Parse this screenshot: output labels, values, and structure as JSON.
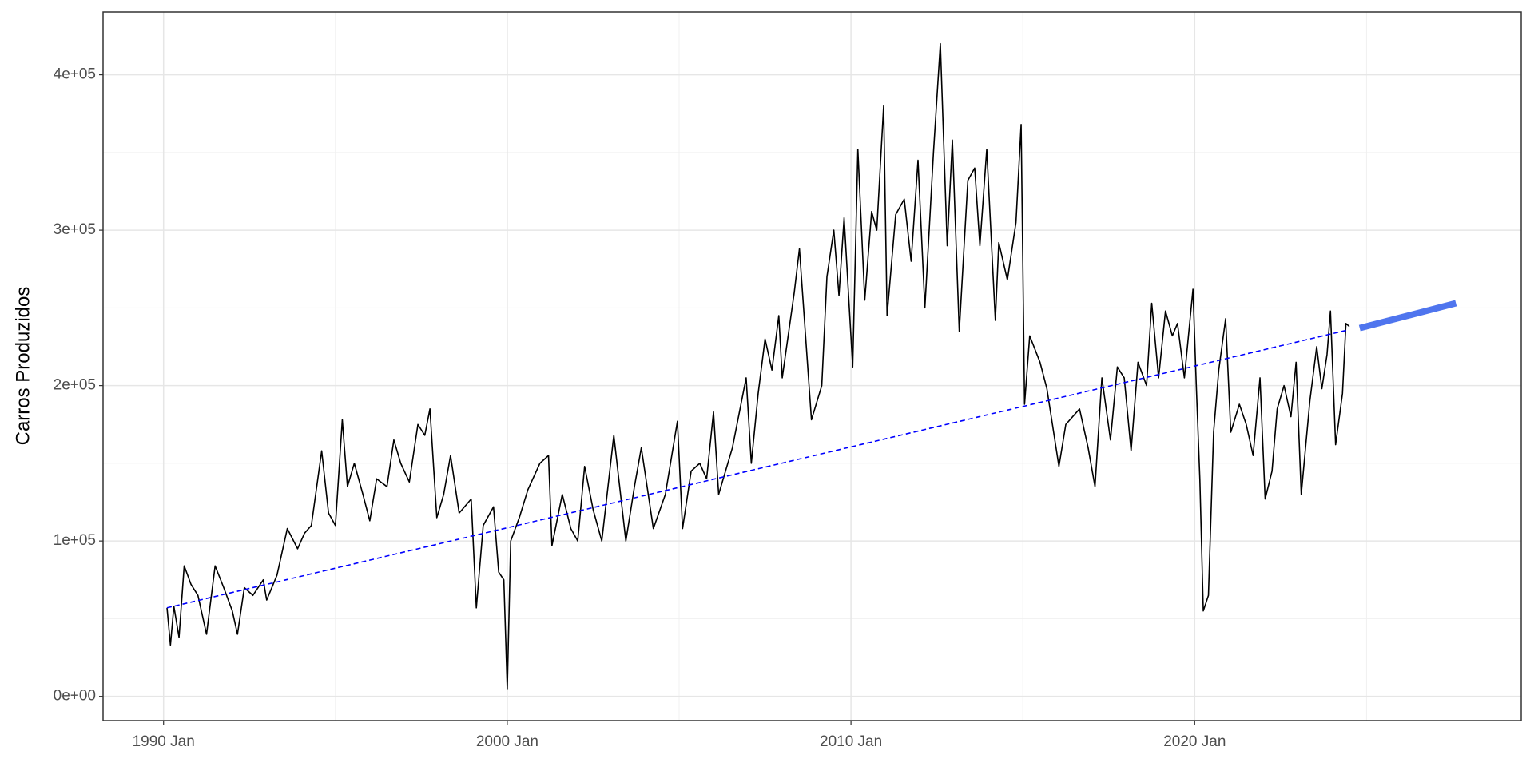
{
  "chart_data": {
    "type": "line",
    "y_label": "Carros Produzidos",
    "xlim": [
      1988.24,
      2029.5
    ],
    "ylim": [
      -15600,
      440400
    ],
    "xticks": [
      {
        "value": 1990,
        "label": "1990 Jan"
      },
      {
        "value": 2000,
        "label": "2000 Jan"
      },
      {
        "value": 2010,
        "label": "2010 Jan"
      },
      {
        "value": 2020,
        "label": "2020 Jan"
      }
    ],
    "xminor": [
      1995,
      2005,
      2015,
      2025
    ],
    "yticks": [
      {
        "value": 0,
        "label": "0e+00"
      },
      {
        "value": 100000,
        "label": "1e+05"
      },
      {
        "value": 200000,
        "label": "2e+05"
      },
      {
        "value": 300000,
        "label": "3e+05"
      },
      {
        "value": 400000,
        "label": "4e+05"
      }
    ],
    "yminor": [
      50000,
      150000,
      250000,
      350000
    ],
    "grid": true,
    "series": [
      {
        "color": "#000000",
        "line_width": 1.6,
        "dashed": false,
        "x": [
          1990.1,
          1990.2,
          1990.3,
          1990.45,
          1990.6,
          1990.8,
          1991.0,
          1991.25,
          1991.5,
          1991.75,
          1992.0,
          1992.15,
          1992.35,
          1992.6,
          1992.9,
          1993.0,
          1993.3,
          1993.6,
          1993.9,
          1994.1,
          1994.3,
          1994.6,
          1994.8,
          1995.0,
          1995.2,
          1995.35,
          1995.55,
          1995.8,
          1996.0,
          1996.2,
          1996.5,
          1996.7,
          1996.9,
          1997.15,
          1997.4,
          1997.6,
          1997.75,
          1997.95,
          1998.15,
          1998.35,
          1998.6,
          1998.95,
          1999.1,
          1999.3,
          1999.6,
          1999.75,
          1999.9,
          2000.0,
          2000.1,
          2000.35,
          2000.6,
          2000.95,
          2001.2,
          2001.3,
          2001.6,
          2001.85,
          2002.05,
          2002.25,
          2002.5,
          2002.75,
          2003.1,
          2003.45,
          2003.7,
          2003.9,
          2004.25,
          2004.6,
          2004.95,
          2005.1,
          2005.35,
          2005.6,
          2005.8,
          2006.0,
          2006.15,
          2006.55,
          2006.95,
          2007.1,
          2007.3,
          2007.5,
          2007.7,
          2007.9,
          2008.0,
          2008.35,
          2008.5,
          2008.85,
          2009.15,
          2009.3,
          2009.5,
          2009.65,
          2009.8,
          2010.05,
          2010.2,
          2010.4,
          2010.6,
          2010.75,
          2010.95,
          2011.05,
          2011.3,
          2011.55,
          2011.75,
          2011.95,
          2012.15,
          2012.4,
          2012.6,
          2012.8,
          2012.95,
          2013.15,
          2013.4,
          2013.6,
          2013.75,
          2013.95,
          2014.2,
          2014.3,
          2014.55,
          2014.8,
          2014.95,
          2015.05,
          2015.2,
          2015.5,
          2015.7,
          2016.05,
          2016.25,
          2016.65,
          2016.9,
          2017.1,
          2017.3,
          2017.55,
          2017.75,
          2017.95,
          2018.15,
          2018.35,
          2018.6,
          2018.75,
          2018.95,
          2019.15,
          2019.35,
          2019.5,
          2019.7,
          2019.95,
          2020.05,
          2020.15,
          2020.25,
          2020.4,
          2020.55,
          2020.7,
          2020.9,
          2021.05,
          2021.3,
          2021.5,
          2021.7,
          2021.9,
          2022.05,
          2022.25,
          2022.4,
          2022.6,
          2022.8,
          2022.95,
          2023.1,
          2023.35,
          2023.55,
          2023.7,
          2023.85,
          2023.95,
          2024.1,
          2024.3,
          2024.4,
          2024.5
        ],
        "values": [
          57000,
          33000,
          58000,
          38000,
          84000,
          72000,
          65000,
          40000,
          84000,
          70000,
          55000,
          40000,
          70000,
          65000,
          75000,
          62000,
          78000,
          108000,
          95000,
          105000,
          110000,
          158000,
          118000,
          110000,
          178000,
          135000,
          150000,
          130000,
          113000,
          140000,
          135000,
          165000,
          150000,
          138000,
          175000,
          168000,
          185000,
          115000,
          130000,
          155000,
          118000,
          127000,
          57000,
          110000,
          122000,
          80000,
          75000,
          5000,
          100000,
          115000,
          133000,
          150000,
          155000,
          97000,
          130000,
          108000,
          100000,
          148000,
          120000,
          100000,
          168000,
          100000,
          135000,
          160000,
          108000,
          130000,
          177000,
          108000,
          145000,
          150000,
          140000,
          183000,
          130000,
          160000,
          205000,
          150000,
          195000,
          230000,
          210000,
          245000,
          205000,
          260000,
          288000,
          178000,
          200000,
          270000,
          300000,
          258000,
          308000,
          212000,
          352000,
          255000,
          312000,
          300000,
          380000,
          245000,
          310000,
          320000,
          280000,
          345000,
          250000,
          350000,
          420000,
          290000,
          358000,
          235000,
          332000,
          340000,
          290000,
          352000,
          242000,
          292000,
          268000,
          305000,
          368000,
          188000,
          232000,
          215000,
          198000,
          148000,
          175000,
          185000,
          160000,
          135000,
          205000,
          165000,
          212000,
          205000,
          158000,
          215000,
          200000,
          253000,
          205000,
          248000,
          232000,
          240000,
          205000,
          262000,
          198000,
          140000,
          55000,
          65000,
          170000,
          210000,
          243000,
          170000,
          188000,
          175000,
          155000,
          205000,
          127000,
          145000,
          185000,
          200000,
          180000,
          215000,
          130000,
          190000,
          225000,
          198000,
          220000,
          248000,
          162000,
          195000,
          240000,
          238000
        ]
      },
      {
        "color": "#0000ff",
        "line_width": 1.6,
        "dashed": true,
        "x": [
          1990.1,
          2024.5
        ],
        "values": [
          57000,
          236000
        ]
      },
      {
        "color": "#4f75ee",
        "line_width": 8,
        "dashed": false,
        "x": [
          2024.8,
          2027.6
        ],
        "values": [
          237000,
          253000
        ]
      }
    ]
  }
}
